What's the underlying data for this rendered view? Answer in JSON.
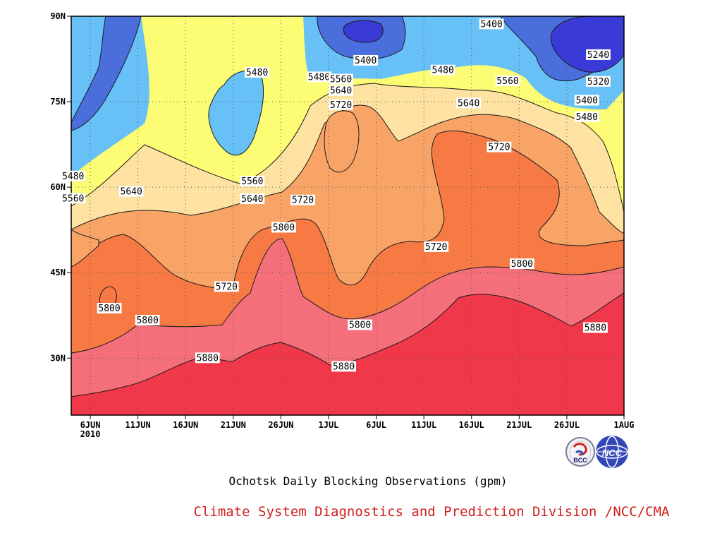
{
  "chart_data": {
    "type": "heatmap",
    "title": "Ochotsk Daily Blocking Observations (gpm)",
    "organization": "Climate System Diagnostics and Prediction Division /NCC/CMA",
    "x_start_day": "2010-06-04",
    "x_ticks": [
      {
        "day": 2,
        "label": "6JUN",
        "sublabel": "2010"
      },
      {
        "day": 7,
        "label": "11JUN"
      },
      {
        "day": 12,
        "label": "16JUN"
      },
      {
        "day": 17,
        "label": "21JUN"
      },
      {
        "day": 22,
        "label": "26JUN"
      },
      {
        "day": 27,
        "label": "1JUL"
      },
      {
        "day": 32,
        "label": "6JUL"
      },
      {
        "day": 37,
        "label": "11JUL"
      },
      {
        "day": 42,
        "label": "16JUL"
      },
      {
        "day": 47,
        "label": "21JUL"
      },
      {
        "day": 52,
        "label": "26JUL"
      },
      {
        "day": 58,
        "label": "1AUG"
      }
    ],
    "xlim_day": [
      0,
      58
    ],
    "y_ticks": [
      {
        "lat": 30,
        "label": "30N"
      },
      {
        "lat": 45,
        "label": "45N"
      },
      {
        "lat": 60,
        "label": "60N"
      },
      {
        "lat": 75,
        "label": "75N"
      },
      {
        "lat": 90,
        "label": "90N"
      }
    ],
    "ylim_lat": [
      20,
      90
    ],
    "levels": [
      5240,
      5320,
      5400,
      5480,
      5560,
      5640,
      5720,
      5800,
      5880
    ],
    "fill_colors": [
      "#3a3ad6",
      "#4a6fdc",
      "#5a93e6",
      "#67c1f7",
      "#fdfd75",
      "#fde2a1",
      "#f9a467",
      "#f77a45",
      "#f56f7a",
      "#f0384a"
    ],
    "contour_labels": [
      {
        "text": "5400",
        "day": 44.1,
        "lat": 88.6
      },
      {
        "text": "5400",
        "day": 30.9,
        "lat": 82.2
      },
      {
        "text": "5240",
        "day": 55.3,
        "lat": 83.2
      },
      {
        "text": "5480",
        "day": 19.5,
        "lat": 80.1
      },
      {
        "text": "5480",
        "day": 39.0,
        "lat": 80.5
      },
      {
        "text": "5480",
        "day": 26.0,
        "lat": 79.3
      },
      {
        "text": "5560",
        "day": 28.3,
        "lat": 78.9
      },
      {
        "text": "5560",
        "day": 45.8,
        "lat": 78.6
      },
      {
        "text": "5640",
        "day": 28.3,
        "lat": 76.9
      },
      {
        "text": "5320",
        "day": 55.3,
        "lat": 78.5
      },
      {
        "text": "5400",
        "day": 54.1,
        "lat": 75.2
      },
      {
        "text": "5720",
        "day": 28.3,
        "lat": 74.4
      },
      {
        "text": "5640",
        "day": 41.7,
        "lat": 74.7
      },
      {
        "text": "5480",
        "day": 54.1,
        "lat": 72.3
      },
      {
        "text": "5720",
        "day": 44.9,
        "lat": 67.0
      },
      {
        "text": "5480",
        "day": 0.2,
        "lat": 61.9
      },
      {
        "text": "5560",
        "day": 19.0,
        "lat": 61.0
      },
      {
        "text": "5560",
        "day": 0.2,
        "lat": 58.0
      },
      {
        "text": "5640",
        "day": 6.3,
        "lat": 59.2
      },
      {
        "text": "5640",
        "day": 19.0,
        "lat": 57.9
      },
      {
        "text": "5720",
        "day": 24.3,
        "lat": 57.7
      },
      {
        "text": "5800",
        "day": 22.3,
        "lat": 52.9
      },
      {
        "text": "5720",
        "day": 38.3,
        "lat": 49.5
      },
      {
        "text": "5800",
        "day": 47.3,
        "lat": 46.5
      },
      {
        "text": "5720",
        "day": 16.3,
        "lat": 42.5
      },
      {
        "text": "5800",
        "day": 4.0,
        "lat": 38.7
      },
      {
        "text": "5800",
        "day": 8.0,
        "lat": 36.6
      },
      {
        "text": "5800",
        "day": 30.3,
        "lat": 35.8
      },
      {
        "text": "5880",
        "day": 55.0,
        "lat": 35.3
      },
      {
        "text": "5880",
        "day": 14.3,
        "lat": 30.0
      },
      {
        "text": "5880",
        "day": 28.6,
        "lat": 28.5
      }
    ]
  },
  "logos": {
    "bcc_label": "BCC",
    "ncc_label": "NCC"
  }
}
